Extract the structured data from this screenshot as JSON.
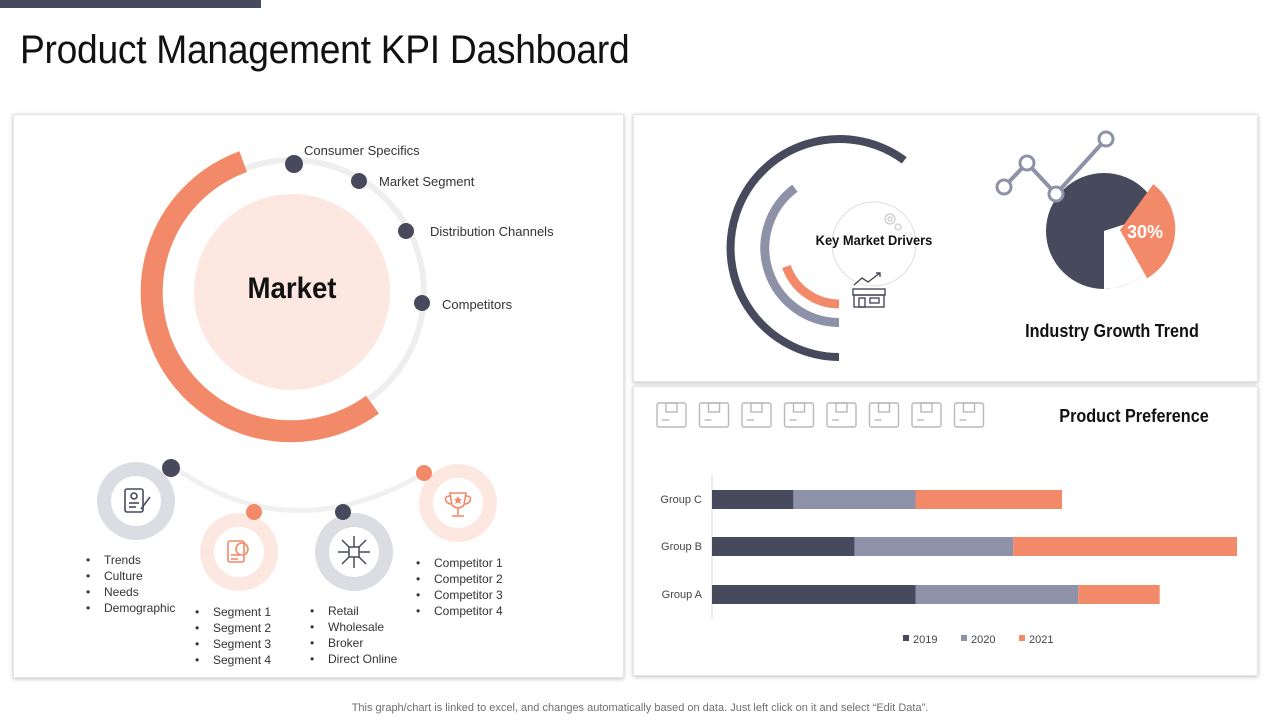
{
  "page": {
    "title": "Product Management KPI Dashboard",
    "footer": "This graph/chart is linked to excel,  and changes automatically based on data. Just left click on it and select “Edit Data”."
  },
  "market_panel": {
    "center_label": "Market",
    "points": [
      "Consumer Specifics",
      "Market Segment",
      "Distribution Channels",
      "Competitors"
    ],
    "icons": [
      "document-pen-icon",
      "target-report-icon",
      "distribution-network-icon",
      "trophy-icon"
    ],
    "lists": {
      "consumer": [
        "Trends",
        "Culture",
        "Needs",
        "Demographic"
      ],
      "segments": [
        "Segment 1",
        "Segment 2",
        "Segment 3",
        "Segment 4"
      ],
      "channels": [
        "Retail",
        "Wholesale",
        "Broker",
        "Direct Online"
      ],
      "competitors": [
        "Competitor 1",
        "Competitor 2",
        "Competitor 3",
        "Competitor 4"
      ]
    }
  },
  "drivers_panel": {
    "key_market_drivers": "Key Market Drivers",
    "growth_percent": "30%",
    "industry_growth_trend": "Industry Growth Trend"
  },
  "preference_panel": {
    "title": "Product Preference",
    "icon_count": 8
  },
  "colors": {
    "dark": "#474a5c",
    "gray": "#8d92a8",
    "orange": "#f28a69",
    "pale": "#fde8e1"
  },
  "chart_data": {
    "type": "bar",
    "orientation": "horizontal",
    "stacked": true,
    "title": "Product Preference",
    "categories": [
      "Group A",
      "Group B",
      "Group C"
    ],
    "series": [
      {
        "name": "2019",
        "color": "#474a5c",
        "values": [
          2.5,
          1.75,
          1.0
        ]
      },
      {
        "name": "2020",
        "color": "#8d92a8",
        "values": [
          2.0,
          1.95,
          1.5
        ]
      },
      {
        "name": "2021",
        "color": "#f28a69",
        "values": [
          1.0,
          2.75,
          1.8
        ]
      }
    ],
    "xlim": [
      0,
      6.5
    ],
    "legend": "bottom",
    "grid": false
  }
}
